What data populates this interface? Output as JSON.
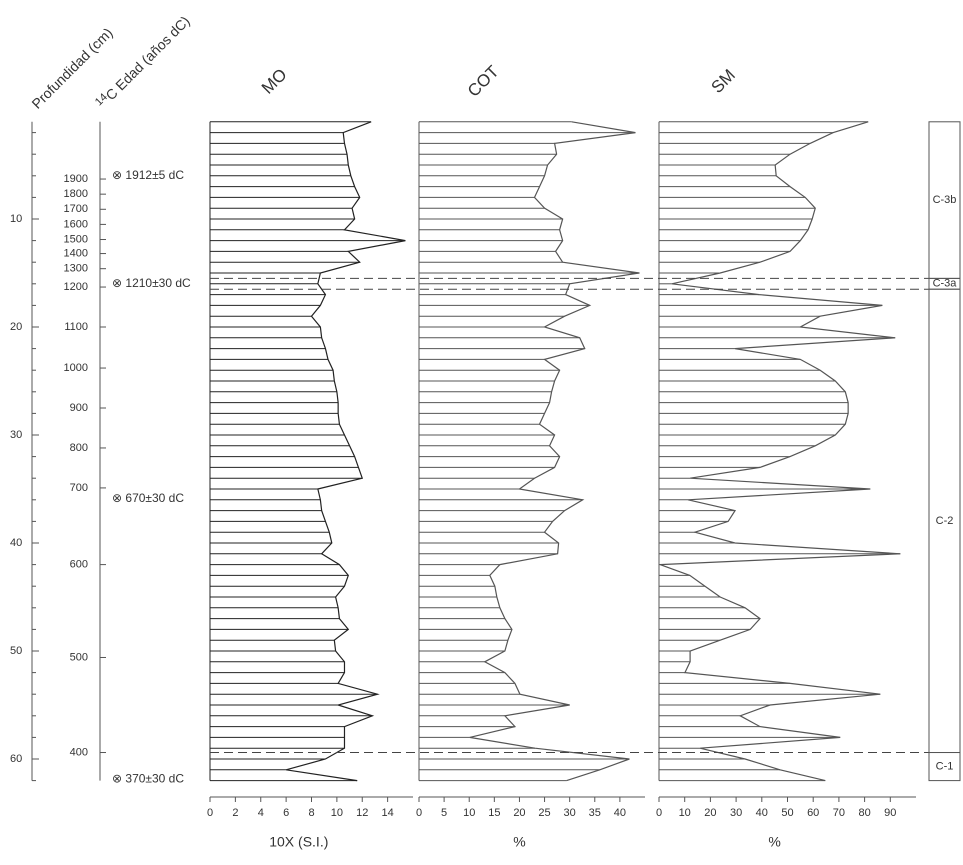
{
  "depth_axis": {
    "title": "Profundidad (cm)",
    "lim": [
      1,
      62
    ],
    "ticks": [
      10,
      20,
      30,
      40,
      50,
      60
    ],
    "minor_ticks": [
      2,
      4,
      6,
      8,
      12,
      14,
      16,
      18,
      22,
      24,
      26,
      28,
      32,
      34,
      36,
      38,
      42,
      44,
      46,
      48,
      52,
      54,
      56,
      58,
      62
    ]
  },
  "age_axis": {
    "title_sup": "14",
    "title": "C Edad (años dC)",
    "ticks": [
      1900,
      1800,
      1700,
      1600,
      1500,
      1400,
      1300,
      1200,
      1100,
      1000,
      900,
      800,
      700,
      600,
      500,
      400
    ],
    "tick_depths": [
      6.3,
      7.7,
      9.1,
      10.5,
      11.9,
      13.2,
      14.6,
      16.3,
      20.0,
      23.8,
      27.5,
      31.2,
      34.9,
      42.0,
      50.6,
      59.4
    ]
  },
  "samples": {
    "depths": [
      1,
      2,
      3,
      4,
      5,
      6,
      7,
      8,
      9,
      10,
      11,
      12,
      13,
      14,
      15,
      16,
      17,
      18,
      19,
      20,
      21,
      22,
      23,
      24,
      25,
      26,
      27,
      28,
      29,
      30,
      31,
      32,
      33,
      34,
      35,
      36,
      37,
      38,
      39,
      40,
      41,
      42,
      43,
      44,
      45,
      46,
      47,
      48,
      49,
      50,
      51,
      52,
      53,
      54,
      55,
      56,
      57,
      58,
      59,
      60,
      61,
      62
    ]
  },
  "dates": [
    {
      "label": "⊗ 1912±5 dC",
      "depth": 6.0
    },
    {
      "label": "⊗ 1210±30 dC",
      "depth": 16.0
    },
    {
      "label": "⊗ 670±30 dC",
      "depth": 35.9
    },
    {
      "label": "⊗ 370±30 dC",
      "depth": 61.9
    }
  ],
  "units": [
    {
      "name": "C-3b",
      "top": 1,
      "bottom": 15.5
    },
    {
      "name": "C-3a",
      "top": 15.5,
      "bottom": 16.5
    },
    {
      "name": "C-2",
      "top": 16.5,
      "bottom": 59.4
    },
    {
      "name": "C-1",
      "top": 59.4,
      "bottom": 62
    }
  ],
  "chart_data": [
    {
      "type": "profile",
      "title": "MO",
      "xlabel": "10X (S.I.)",
      "xlim": [
        0,
        16
      ],
      "xticks": [
        0,
        2,
        4,
        6,
        8,
        10,
        12,
        14
      ],
      "color": "#222222",
      "values": [
        12.7,
        10.5,
        10.6,
        10.8,
        10.9,
        11.1,
        11.4,
        11.8,
        11.2,
        11.4,
        10.6,
        15.4,
        10.9,
        11.8,
        8.7,
        8.5,
        9.1,
        8.7,
        8.0,
        8.7,
        8.8,
        9.1,
        9.3,
        9.7,
        9.8,
        10.0,
        10.1,
        10.1,
        10.2,
        10.6,
        11.0,
        11.4,
        11.7,
        12.0,
        8.5,
        8.7,
        8.8,
        9.1,
        9.4,
        9.6,
        8.8,
        10.2,
        10.9,
        10.6,
        9.9,
        10.1,
        10.2,
        10.9,
        9.8,
        9.9,
        10.6,
        10.6,
        10.1,
        13.2,
        10.1,
        12.8,
        10.6,
        10.6,
        10.6,
        9.1,
        6.0,
        11.6
      ]
    },
    {
      "type": "profile",
      "title": "COT",
      "xlabel": "%",
      "xlim": [
        0,
        45
      ],
      "xticks": [
        0,
        5,
        10,
        15,
        20,
        25,
        30,
        35,
        40
      ],
      "color": "#555555",
      "values": [
        30.4,
        43.1,
        27.0,
        27.4,
        25.6,
        25.0,
        24.0,
        23.0,
        25.0,
        28.6,
        28.0,
        28.6,
        27.2,
        28.6,
        43.9,
        30.0,
        29.2,
        34.0,
        29.0,
        25.0,
        32.0,
        33.0,
        25.0,
        28.0,
        27.0,
        26.4,
        26.0,
        25.0,
        24.0,
        27.0,
        26.0,
        28.0,
        27.0,
        23.0,
        20.0,
        32.6,
        29.0,
        26.6,
        25.0,
        27.8,
        27.6,
        16.1,
        14.1,
        15.1,
        15.5,
        16.1,
        17.1,
        18.5,
        17.7,
        17.1,
        13.1,
        17.1,
        19.1,
        20.1,
        30.0,
        17.1,
        19.1,
        10.1,
        23.1,
        41.9,
        36.0,
        29.4
      ]
    },
    {
      "type": "profile",
      "title": "SM",
      "xlabel": "%",
      "xlim": [
        0,
        100
      ],
      "xticks": [
        0,
        10,
        20,
        30,
        40,
        50,
        60,
        70,
        80,
        90
      ],
      "color": "#555555",
      "values": [
        81.4,
        67.8,
        58.8,
        51.0,
        45.2,
        45.6,
        51.0,
        56.9,
        60.8,
        59.6,
        58.0,
        55.0,
        51.0,
        39.3,
        23.8,
        5.0,
        39.0,
        86.9,
        62.7,
        55.0,
        91.9,
        29.6,
        55.0,
        62.7,
        68.6,
        72.5,
        73.6,
        73.6,
        72.5,
        68.6,
        60.8,
        51.0,
        39.3,
        12.1,
        82.2,
        11.3,
        29.6,
        26.9,
        14.0,
        29.6,
        93.9,
        0.4,
        12.0,
        17.9,
        23.8,
        33.5,
        39.3,
        35.5,
        23.8,
        12.1,
        12.1,
        10.1,
        51.0,
        86.1,
        43.2,
        31.6,
        39.3,
        70.5,
        16.0,
        33.5,
        47.1,
        64.7
      ]
    }
  ]
}
